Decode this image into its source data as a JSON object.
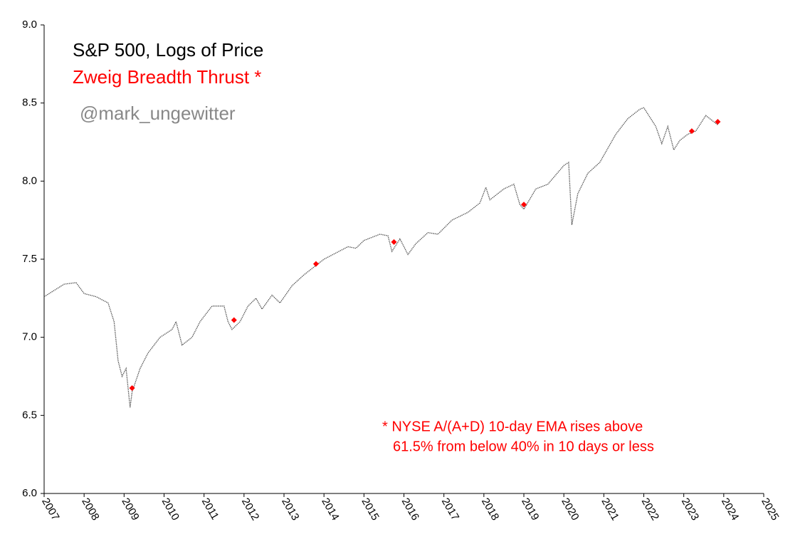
{
  "chart_data": {
    "type": "line",
    "title": "S&P 500, Logs of Price",
    "subtitle": "Zweig Breadth Thrust *",
    "credit": "@mark_ungewitter",
    "annotation": [
      "* NYSE A/(A+D) 10-day EMA rises above",
      "61.5% from below 40% in 10 days or less"
    ],
    "xlim": [
      2007,
      2025
    ],
    "xticks": [
      2007,
      2008,
      2009,
      2010,
      2011,
      2012,
      2013,
      2014,
      2015,
      2016,
      2017,
      2018,
      2019,
      2020,
      2021,
      2022,
      2023,
      2024,
      2025
    ],
    "ylim": [
      6,
      9
    ],
    "yticks": [
      {
        "value": 6,
        "label": "6.0"
      },
      6.5,
      {
        "value": 7,
        "label": "7.0"
      },
      7.5,
      {
        "value": 8,
        "label": "8.0"
      },
      8.5,
      {
        "value": 9,
        "label": "9.0"
      }
    ],
    "series": [
      {
        "color": "#555555",
        "x": [
          2007.0,
          2007.5,
          2007.8,
          2008.0,
          2008.3,
          2008.6,
          2008.75,
          2008.85,
          2008.95,
          2009.05,
          2009.15,
          2009.2,
          2009.4,
          2009.6,
          2009.9,
          2010.2,
          2010.3,
          2010.45,
          2010.7,
          2010.9,
          2011.2,
          2011.5,
          2011.6,
          2011.7,
          2011.9,
          2012.1,
          2012.3,
          2012.45,
          2012.7,
          2012.9,
          2013.2,
          2013.5,
          2013.8,
          2014.0,
          2014.3,
          2014.6,
          2014.8,
          2015.0,
          2015.4,
          2015.6,
          2015.7,
          2015.9,
          2016.1,
          2016.3,
          2016.6,
          2016.85,
          2017.2,
          2017.6,
          2017.9,
          2018.05,
          2018.15,
          2018.5,
          2018.75,
          2018.9,
          2019.0,
          2019.3,
          2019.6,
          2020.0,
          2020.12,
          2020.2,
          2020.35,
          2020.6,
          2020.9,
          2021.3,
          2021.6,
          2021.9,
          2022.0,
          2022.3,
          2022.45,
          2022.6,
          2022.75,
          2022.9,
          2023.1,
          2023.3,
          2023.55,
          2023.75,
          2023.85
        ],
        "values": [
          7.26,
          7.34,
          7.35,
          7.28,
          7.26,
          7.22,
          7.1,
          6.85,
          6.75,
          6.8,
          6.55,
          6.65,
          6.8,
          6.9,
          7.0,
          7.05,
          7.1,
          6.95,
          7.0,
          7.1,
          7.2,
          7.2,
          7.1,
          7.05,
          7.1,
          7.2,
          7.25,
          7.18,
          7.27,
          7.22,
          7.33,
          7.4,
          7.46,
          7.5,
          7.54,
          7.58,
          7.57,
          7.62,
          7.66,
          7.65,
          7.55,
          7.63,
          7.53,
          7.6,
          7.67,
          7.66,
          7.75,
          7.8,
          7.86,
          7.96,
          7.88,
          7.95,
          7.98,
          7.85,
          7.82,
          7.95,
          7.98,
          8.1,
          8.12,
          7.72,
          7.92,
          8.05,
          8.12,
          8.3,
          8.4,
          8.46,
          8.47,
          8.35,
          8.24,
          8.35,
          8.2,
          8.26,
          8.3,
          8.32,
          8.42,
          8.38,
          8.36
        ]
      },
      {
        "type": "scatter",
        "color": "#ff0000",
        "x": [
          2009.2,
          2011.75,
          2013.8,
          2015.75,
          2019.0,
          2023.2,
          2023.85
        ],
        "values": [
          6.675,
          7.11,
          7.47,
          7.61,
          7.85,
          8.32,
          8.38
        ]
      }
    ]
  }
}
